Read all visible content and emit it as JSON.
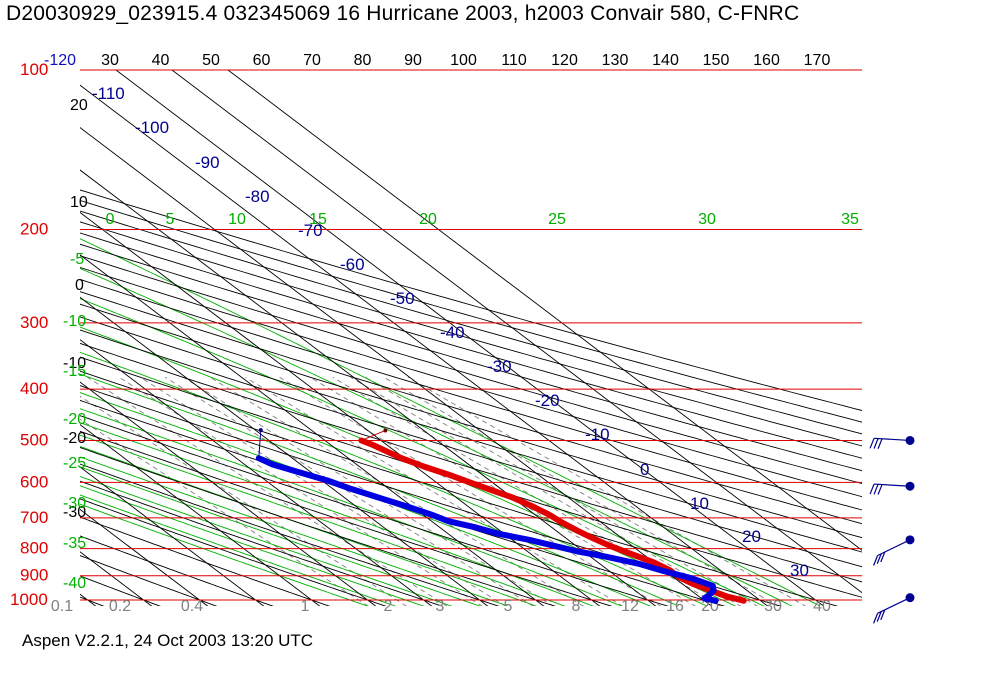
{
  "header": {
    "title": "D20030929_023915.4 032345069 16 Hurricane 2003, h2003 Convair 580, C-FNRC"
  },
  "footer": {
    "text": "Aspen V2.2.1, 24 Oct 2003  13:20 UTC"
  },
  "colors": {
    "isobar": "#e00000",
    "isotherm": "#000000",
    "dry_adiabat": "#000000",
    "moist_adiabat": "#00b000",
    "mixing_ratio": "#808080",
    "temperature": "#e00000",
    "dewpoint": "#0000e0",
    "top_labels": "#000000",
    "theta_labels": "#000090",
    "wind_barb": "#000090"
  },
  "chart_data": {
    "type": "skew-t log-p",
    "title": "D20030929_023915.4 032345069 16 Hurricane 2003, h2003 Convair 580, C-FNRC",
    "pressure_labels": [
      "100",
      "200",
      "300",
      "400",
      "500",
      "600",
      "700",
      "800",
      "900",
      "1000"
    ],
    "pressure_levels": [
      100,
      200,
      300,
      400,
      500,
      600,
      700,
      800,
      900,
      1000
    ],
    "top_axis_labels": [
      "-120",
      "30",
      "40",
      "50",
      "60",
      "70",
      "80",
      "90",
      "100",
      "110",
      "120",
      "130",
      "140",
      "150",
      "160",
      "170"
    ],
    "temperature_left_labels": [
      "20",
      "10",
      "0",
      "-10",
      "-20",
      "-30"
    ],
    "dry_adiabat_labels": [
      "-110",
      "-100",
      "-90",
      "-80",
      "-70",
      "-60",
      "-50",
      "-40",
      "-30",
      "-20",
      "-10",
      "0",
      "10",
      "20",
      "30"
    ],
    "moist_adiabat_labels": [
      "0",
      "5",
      "10",
      "15",
      "20",
      "25",
      "30",
      "35",
      "-5",
      "-10",
      "-15",
      "-20",
      "-25",
      "-30",
      "-35",
      "-40"
    ],
    "mixing_ratio_labels": [
      "0.1",
      "0.2",
      "0.4",
      "1",
      "2",
      "3",
      "5",
      "8",
      "12",
      "16",
      "20",
      "30",
      "40"
    ],
    "temperature_profile": [
      {
        "p": 1003,
        "t": 27.0
      },
      {
        "p": 985,
        "t": 25.0
      },
      {
        "p": 960,
        "t": 23.5
      },
      {
        "p": 935,
        "t": 22.0
      },
      {
        "p": 905,
        "t": 21.0
      },
      {
        "p": 880,
        "t": 21.0
      },
      {
        "p": 850,
        "t": 20.0
      },
      {
        "p": 820,
        "t": 18.0
      },
      {
        "p": 790,
        "t": 16.0
      },
      {
        "p": 765,
        "t": 14.8
      },
      {
        "p": 740,
        "t": 13.8
      },
      {
        "p": 715,
        "t": 13.0
      },
      {
        "p": 690,
        "t": 12.5
      },
      {
        "p": 665,
        "t": 11.5
      },
      {
        "p": 640,
        "t": 10.0
      },
      {
        "p": 620,
        "t": 8.0
      },
      {
        "p": 600,
        "t": 6.0
      },
      {
        "p": 580,
        "t": 4.0
      },
      {
        "p": 560,
        "t": 1.5
      },
      {
        "p": 540,
        "t": -0.5
      },
      {
        "p": 525,
        "t": -1.5
      },
      {
        "p": 510,
        "t": -2.5
      },
      {
        "p": 500,
        "t": -3.5
      }
    ],
    "dewpoint_profile": [
      {
        "p": 1003,
        "td": 22.0
      },
      {
        "p": 993,
        "td": 20.5
      },
      {
        "p": 980,
        "td": 22.0
      },
      {
        "p": 960,
        "td": 24.0
      },
      {
        "p": 940,
        "td": 25.0
      },
      {
        "p": 910,
        "td": 23.0
      },
      {
        "p": 880,
        "td": 19.5
      },
      {
        "p": 855,
        "td": 17.0
      },
      {
        "p": 830,
        "td": 13.0
      },
      {
        "p": 810,
        "td": 9.0
      },
      {
        "p": 790,
        "td": 6.0
      },
      {
        "p": 770,
        "td": 3.0
      },
      {
        "p": 750,
        "td": -1.0
      },
      {
        "p": 730,
        "td": -3.5
      },
      {
        "p": 710,
        "td": -7.0
      },
      {
        "p": 690,
        "td": -8.5
      },
      {
        "p": 665,
        "td": -11.0
      },
      {
        "p": 640,
        "td": -14.0
      },
      {
        "p": 615,
        "td": -17.0
      },
      {
        "p": 595,
        "td": -19.0
      },
      {
        "p": 575,
        "td": -22.0
      },
      {
        "p": 555,
        "td": -25.0
      },
      {
        "p": 540,
        "td": -26.0
      }
    ],
    "wind_barbs": [
      {
        "p": 500,
        "label": "wind-barb-500"
      },
      {
        "p": 610,
        "label": "wind-barb-610"
      },
      {
        "p": 770,
        "label": "wind-barb-770"
      },
      {
        "p": 990,
        "label": "wind-barb-990"
      }
    ],
    "grid": true
  }
}
